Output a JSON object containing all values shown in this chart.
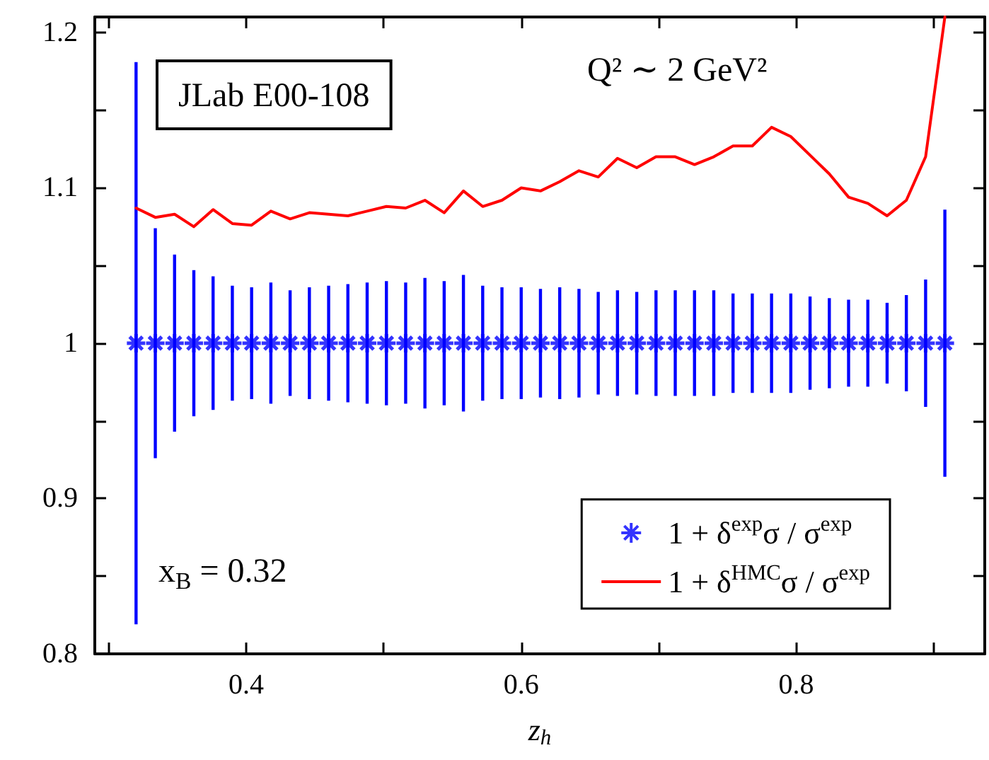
{
  "chart_data": {
    "type": "scatter",
    "x": [
      0.32,
      0.334,
      0.348,
      0.362,
      0.376,
      0.39,
      0.404,
      0.418,
      0.432,
      0.446,
      0.46,
      0.474,
      0.488,
      0.502,
      0.516,
      0.53,
      0.544,
      0.558,
      0.572,
      0.586,
      0.6,
      0.614,
      0.628,
      0.642,
      0.656,
      0.67,
      0.684,
      0.698,
      0.712,
      0.726,
      0.74,
      0.754,
      0.768,
      0.782,
      0.796,
      0.81,
      0.824,
      0.838,
      0.852,
      0.866,
      0.88,
      0.894,
      0.908
    ],
    "series": [
      {
        "name": "1 + δ$^{exp}$σ / σ$^{exp}$",
        "marker": "cross",
        "color": "#0000ff",
        "values": [
          1,
          1,
          1,
          1,
          1,
          1,
          1,
          1,
          1,
          1,
          1,
          1,
          1,
          1,
          1,
          1,
          1,
          1,
          1,
          1,
          1,
          1,
          1,
          1,
          1,
          1,
          1,
          1,
          1,
          1,
          1,
          1,
          1,
          1,
          1,
          1,
          1,
          1,
          1,
          1,
          1,
          1,
          1
        ],
        "errors": [
          0.181,
          0.074,
          0.057,
          0.047,
          0.043,
          0.037,
          0.036,
          0.039,
          0.034,
          0.036,
          0.037,
          0.038,
          0.039,
          0.04,
          0.039,
          0.042,
          0.04,
          0.044,
          0.037,
          0.036,
          0.036,
          0.035,
          0.036,
          0.035,
          0.033,
          0.034,
          0.033,
          0.034,
          0.034,
          0.034,
          0.034,
          0.032,
          0.032,
          0.032,
          0.032,
          0.03,
          0.029,
          0.028,
          0.028,
          0.026,
          0.031,
          0.041,
          0.086
        ]
      },
      {
        "name": "1 + δ$^{HMC}$σ / σ$^{exp}$",
        "type": "line",
        "marker": "none",
        "line_style": "solid",
        "color": "#ff0000",
        "values": [
          1.087,
          1.081,
          1.083,
          1.075,
          1.086,
          1.077,
          1.076,
          1.085,
          1.08,
          1.084,
          1.083,
          1.082,
          1.085,
          1.088,
          1.087,
          1.092,
          1.084,
          1.098,
          1.088,
          1.092,
          1.1,
          1.098,
          1.104,
          1.111,
          1.107,
          1.119,
          1.113,
          1.12,
          1.12,
          1.115,
          1.12,
          1.127,
          1.127,
          1.139,
          1.133,
          1.121,
          1.109,
          1.094,
          1.09,
          1.082,
          1.092,
          1.12,
          1.21
        ]
      }
    ],
    "xlabel": "z$_{h}$",
    "xlim": [
      0.29,
      0.937
    ],
    "xticks": [
      {
        "value": 0.3,
        "label": null
      },
      0.4,
      {
        "value": 0.5,
        "label": null
      },
      0.6,
      {
        "value": 0.7,
        "label": null
      },
      0.8,
      {
        "value": 0.9,
        "label": null
      }
    ],
    "ylim": [
      0.8,
      1.21
    ],
    "yticks": [
      0.8,
      {
        "value": 0.85,
        "label": null
      },
      0.9,
      {
        "value": 0.95,
        "label": null
      },
      1,
      {
        "value": 1.05,
        "label": null
      },
      1.1,
      {
        "value": 1.15,
        "label": null
      },
      1.2
    ],
    "annotations": [
      "JLab E00-108",
      "Q² ∼ 2 GeV²",
      "x$_{B}$ = 0.32"
    ],
    "legend": "bottom right",
    "grid": false
  }
}
